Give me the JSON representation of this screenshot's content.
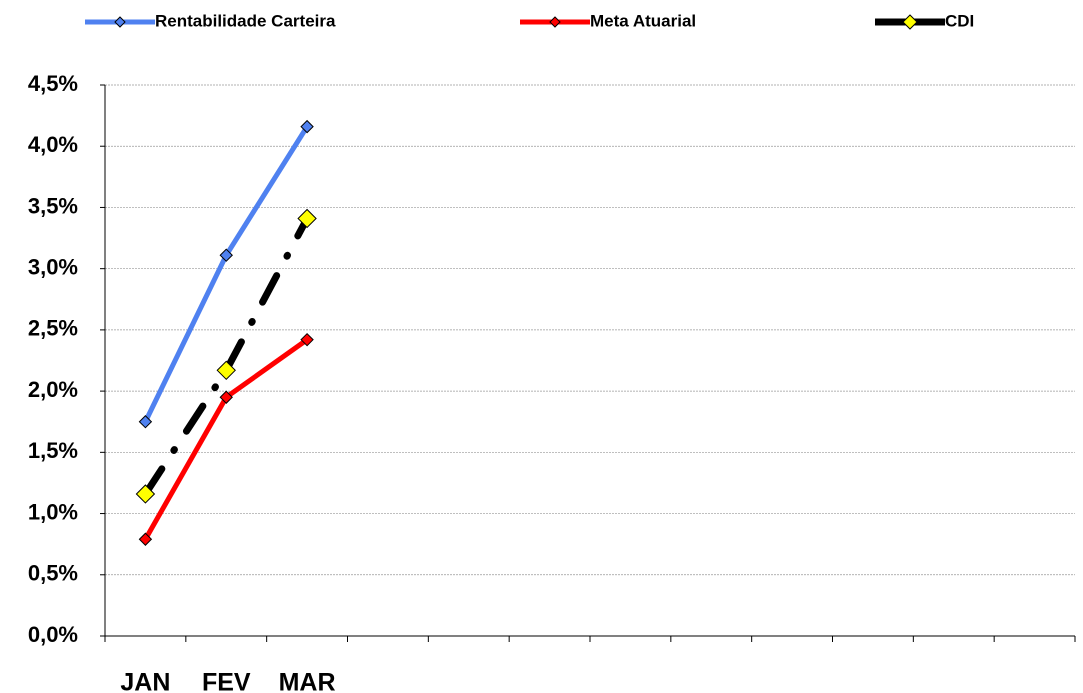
{
  "chart_data": {
    "type": "line",
    "categories": [
      "JAN",
      "FEV",
      "MAR",
      null,
      null,
      null,
      null,
      null,
      null,
      null,
      null,
      null
    ],
    "series": [
      {
        "name": "Rentabilidade Carteira",
        "color": "#4f81f0",
        "values": [
          1.75,
          3.11,
          4.16,
          null,
          null,
          null,
          null,
          null,
          null,
          null,
          null,
          null
        ]
      },
      {
        "name": "Meta Atuarial",
        "color": "#ff0000",
        "values": [
          0.79,
          1.95,
          2.42,
          null,
          null,
          null,
          null,
          null,
          null,
          null,
          null,
          null
        ]
      },
      {
        "name": "CDI",
        "color": "#000000",
        "values": [
          1.16,
          2.17,
          3.41,
          null,
          null,
          null,
          null,
          null,
          null,
          null,
          null,
          null
        ]
      }
    ],
    "ylim": [
      0,
      4.5
    ],
    "yticks": [
      {
        "value": 0,
        "label": "0,0%"
      },
      {
        "value": 0.5,
        "label": "0,5%"
      },
      {
        "value": 1,
        "label": "1,0%"
      },
      {
        "value": 1.5,
        "label": "1,5%"
      },
      {
        "value": 2,
        "label": "2,0%"
      },
      {
        "value": 2.5,
        "label": "2,5%"
      },
      {
        "value": 3,
        "label": "3,0%"
      },
      {
        "value": 3.5,
        "label": "3,5%"
      },
      {
        "value": 4,
        "label": "4,0%"
      },
      {
        "value": 4.5,
        "label": "4,5%"
      }
    ],
    "grid": true,
    "legend": "top"
  }
}
